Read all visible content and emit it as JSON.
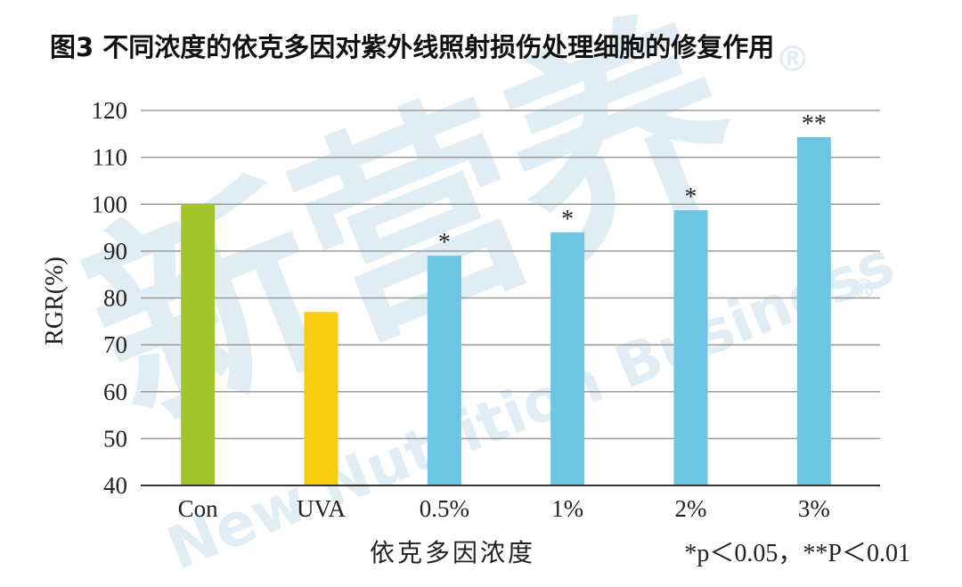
{
  "chart_data": {
    "type": "bar",
    "title": "图3 不同浓度的依克多因对紫外线照射损伤处理细胞的修复作用",
    "xlabel": "依克多因浓度",
    "ylabel": "RGR(%)",
    "note": "*p＜0.05，**P＜0.01",
    "ylim": [
      40,
      120
    ],
    "yticks": [
      40,
      50,
      60,
      70,
      80,
      90,
      100,
      110,
      120
    ],
    "grid": true,
    "categories": [
      "Con",
      "UVA",
      "0.5%",
      "1%",
      "2%",
      "3%"
    ],
    "values": [
      100,
      77,
      89,
      94,
      98.7,
      114.3
    ],
    "significance": [
      "",
      "",
      "*",
      "*",
      "*",
      "**"
    ],
    "colors": [
      "#a3c72a",
      "#f7cb10",
      "#6cc5e3",
      "#6cc5e3",
      "#6cc5e3",
      "#6cc5e3"
    ]
  },
  "watermark": {
    "brand_cn": "新营养",
    "brand_en": "New Nutrition Business",
    "registered": "®",
    "color": "#c9e0ee"
  }
}
